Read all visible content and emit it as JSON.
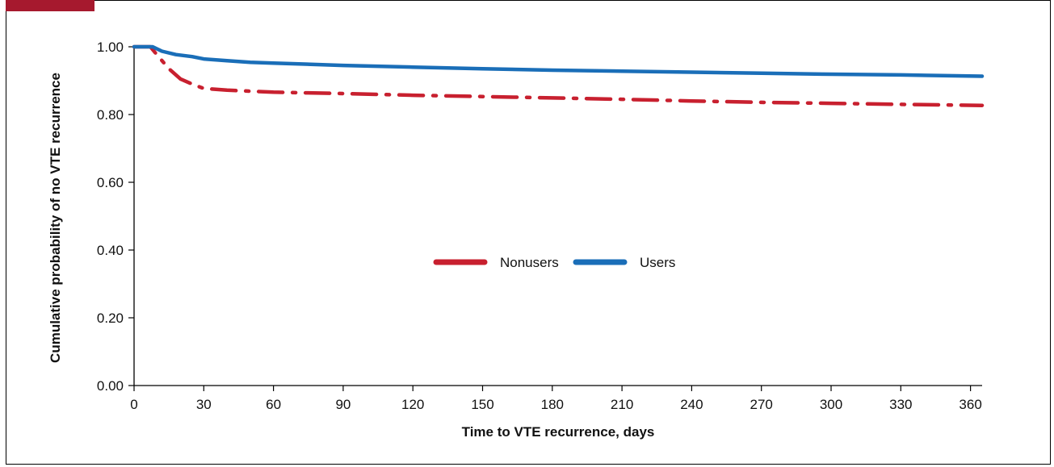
{
  "chart_data": {
    "type": "line",
    "xlabel": "Time to VTE recurrence, days",
    "ylabel": "Cumulative probability of no VTE recurrence",
    "xlim": [
      0,
      365
    ],
    "ylim": [
      0,
      1.0
    ],
    "xticks": [
      0,
      30,
      60,
      90,
      120,
      150,
      180,
      210,
      240,
      270,
      300,
      330,
      360
    ],
    "xtick_labels": [
      "0",
      "30",
      "60",
      "90",
      "120",
      "150",
      "180",
      "210",
      "240",
      "270",
      "300",
      "330",
      "360"
    ],
    "yticks": [
      0,
      0.2,
      0.4,
      0.6,
      0.8,
      1.0
    ],
    "ytick_labels": [
      "0.00",
      "0.20",
      "0.40",
      "0.60",
      "0.80",
      "1.00"
    ],
    "grid": false,
    "legend_position": "center",
    "series": [
      {
        "name": "Nonusers",
        "color": "#c8202f",
        "style": "dash-dot",
        "x": [
          0,
          7,
          10,
          15,
          20,
          25,
          30,
          40,
          60,
          90,
          120,
          150,
          180,
          210,
          240,
          270,
          300,
          330,
          365
        ],
        "y": [
          1.0,
          1.0,
          0.975,
          0.935,
          0.905,
          0.89,
          0.877,
          0.872,
          0.866,
          0.862,
          0.857,
          0.853,
          0.849,
          0.845,
          0.84,
          0.836,
          0.833,
          0.83,
          0.827
        ]
      },
      {
        "name": "Users",
        "color": "#1a6eb8",
        "style": "solid",
        "x": [
          0,
          8,
          12,
          18,
          25,
          30,
          40,
          50,
          60,
          90,
          120,
          150,
          180,
          210,
          240,
          270,
          300,
          330,
          365
        ],
        "y": [
          1.0,
          1.0,
          0.987,
          0.977,
          0.971,
          0.964,
          0.959,
          0.954,
          0.952,
          0.945,
          0.94,
          0.935,
          0.931,
          0.928,
          0.925,
          0.922,
          0.919,
          0.917,
          0.913
        ]
      }
    ]
  },
  "colors": {
    "accent_tab": "#a6192e",
    "axis": "#000000"
  }
}
